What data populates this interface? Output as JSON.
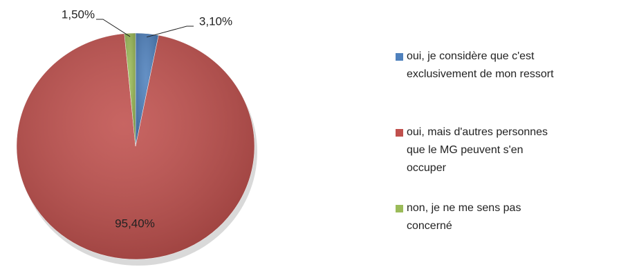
{
  "chart_data": {
    "type": "pie",
    "categories": [
      "oui, je considère que c'est exclusivement de mon ressort",
      "oui, mais d'autres personnes que le MG peuvent s'en occuper",
      "non, je ne me sens pas concerné"
    ],
    "values": [
      3.1,
      95.4,
      1.5
    ],
    "value_labels": [
      "3,10%",
      "95,40%",
      "1,50%"
    ],
    "colors": [
      "#4f81bd",
      "#c0504d",
      "#9bbb59"
    ],
    "legend": "right"
  }
}
